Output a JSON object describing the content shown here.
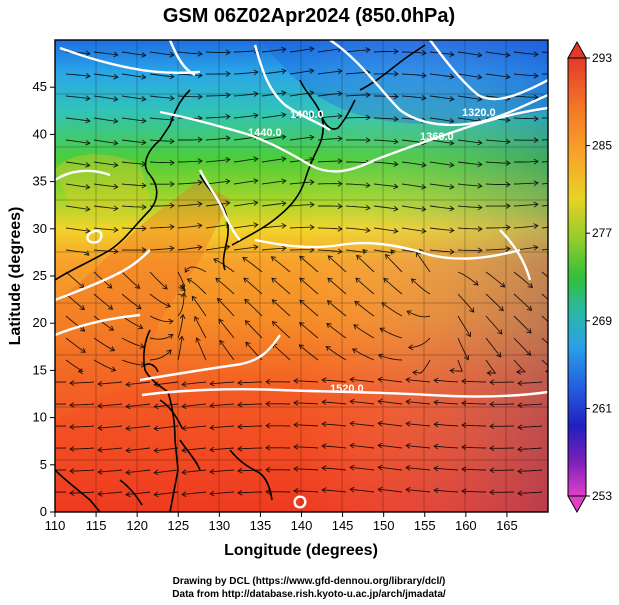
{
  "title": "GSM 06Z02Apr2024 (850.0hPa)",
  "xlabel": "Longitude (degrees)",
  "ylabel": "Latitude  (degrees)",
  "x_ticks": [
    "110",
    "115",
    "120",
    "125",
    "130",
    "135",
    "140",
    "145",
    "150",
    "155",
    "160",
    "165"
  ],
  "y_ticks": [
    "0",
    "5",
    "10",
    "15",
    "20",
    "25",
    "30",
    "35",
    "40",
    "45"
  ],
  "colorbar": {
    "labels": [
      "293",
      "285",
      "277",
      "269",
      "261",
      "253"
    ]
  },
  "contour_labels": [
    "1400.0",
    "1440.0",
    "1360.0",
    "1320.0",
    "1520.0"
  ],
  "credits": {
    "line1": "Drawing by DCL (https://www.gfd-dennou.org/library/dcl/)",
    "line2": "Data from http://database.rish.kyoto-u.ac.jp/arch/jmadata/"
  },
  "colors": {
    "warm": "#f03b1c",
    "orange": "#f7941d",
    "yellow": "#f5e21a",
    "green": "#3cc23c",
    "cyan": "#28b4e6",
    "blue": "#1d5fe0",
    "navy": "#1a1aa0",
    "magenta": "#e040c8"
  }
}
